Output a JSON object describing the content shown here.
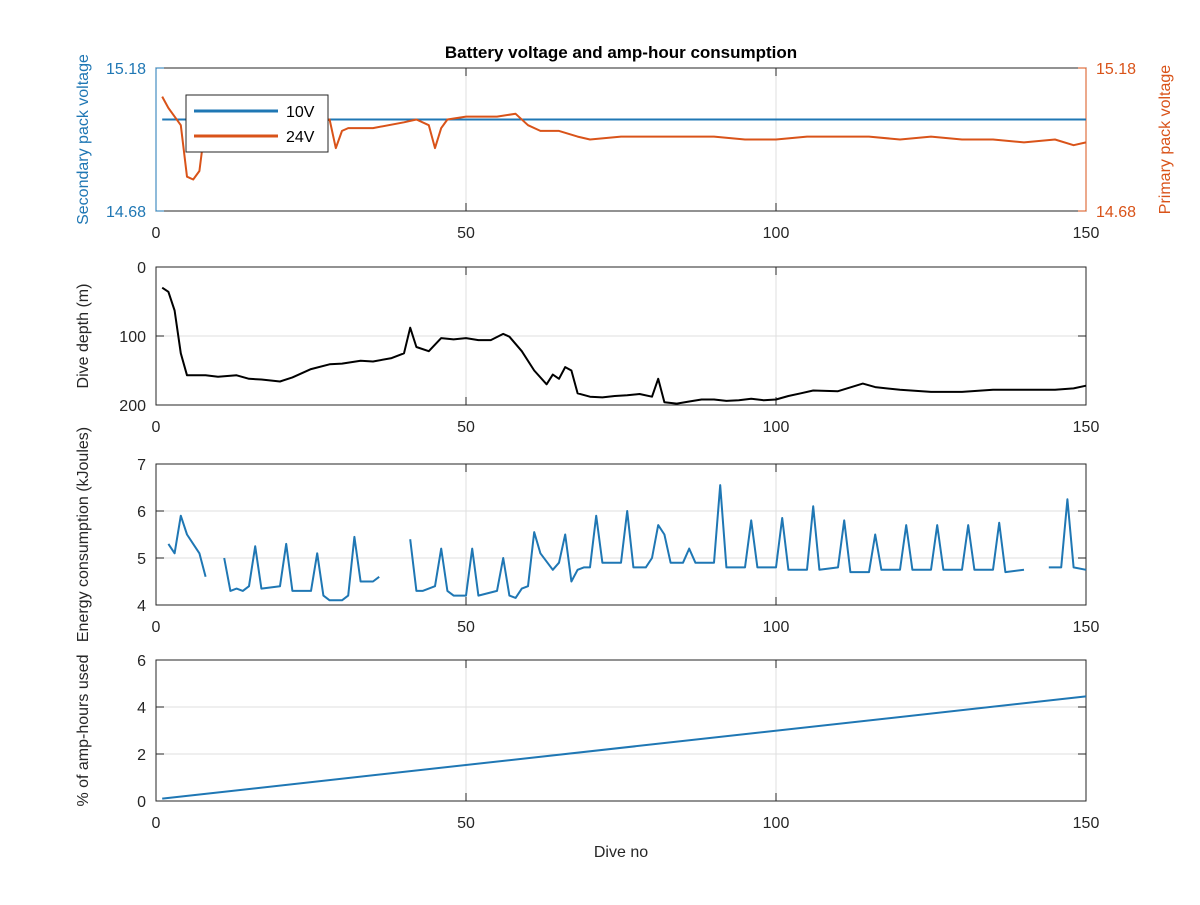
{
  "colors": {
    "blue": "#1f77b4",
    "orange": "#d95319",
    "black": "#000000",
    "grid": "#dfdfdf",
    "axis": "#262626"
  },
  "chart_data": [
    {
      "type": "line",
      "title": "Battery voltage and amp-hour consumption",
      "xlabel": "",
      "ylabel": "Secondary pack voltage",
      "y2label": "Primary pack voltage",
      "xlim": [
        0,
        150
      ],
      "ylim": [
        14.68,
        15.18
      ],
      "y2lim": [
        14.68,
        15.18
      ],
      "x_ticks": [
        0,
        50,
        100,
        150
      ],
      "y_tick_labels": [
        "14.68",
        "15.18"
      ],
      "y2_tick_labels": [
        "14.68",
        "15.18"
      ],
      "grid": true,
      "legend_position": "top-left",
      "series": [
        {
          "name": "10V",
          "axis": "left",
          "color": "#1f77b4",
          "x": [
            1,
            150
          ],
          "y": [
            15.0,
            15.0
          ]
        },
        {
          "name": "24V",
          "axis": "right",
          "color": "#d95319",
          "x": [
            1,
            2,
            3,
            4,
            5,
            6,
            7,
            8,
            10,
            15,
            20,
            25,
            28,
            29,
            30,
            31,
            35,
            40,
            42,
            44,
            45,
            46,
            47,
            50,
            55,
            58,
            60,
            62,
            65,
            68,
            70,
            75,
            80,
            85,
            90,
            95,
            100,
            105,
            110,
            115,
            120,
            125,
            130,
            135,
            140,
            145,
            148,
            150
          ],
          "y": [
            15.08,
            15.04,
            15.01,
            14.98,
            14.8,
            14.79,
            14.82,
            14.99,
            14.99,
            14.98,
            14.99,
            14.98,
            15.0,
            14.9,
            14.96,
            14.97,
            14.97,
            14.99,
            15.0,
            14.98,
            14.9,
            14.97,
            15.0,
            15.01,
            15.01,
            15.02,
            14.98,
            14.96,
            14.96,
            14.94,
            14.93,
            14.94,
            14.94,
            14.94,
            14.94,
            14.93,
            14.93,
            14.94,
            14.94,
            14.94,
            14.93,
            14.94,
            14.93,
            14.93,
            14.92,
            14.93,
            14.91,
            14.92
          ]
        }
      ]
    },
    {
      "type": "line",
      "xlabel": "",
      "ylabel": "Dive depth (m)",
      "xlim": [
        0,
        150
      ],
      "ylim": [
        0,
        200
      ],
      "y_reversed": true,
      "x_ticks": [
        0,
        50,
        100,
        150
      ],
      "y_ticks": [
        0,
        100,
        200
      ],
      "grid": true,
      "series": [
        {
          "color": "#000000",
          "x": [
            1,
            2,
            3,
            4,
            5,
            6,
            8,
            10,
            13,
            15,
            17,
            20,
            22,
            25,
            28,
            30,
            33,
            35,
            38,
            40,
            41,
            42,
            44,
            46,
            48,
            50,
            52,
            54,
            56,
            57,
            59,
            61,
            63,
            64,
            65,
            66,
            67,
            68,
            70,
            72,
            74,
            76,
            78,
            80,
            81,
            82,
            84,
            86,
            88,
            90,
            92,
            94,
            96,
            98,
            100,
            102,
            104,
            106,
            110,
            114,
            116,
            120,
            125,
            130,
            135,
            140,
            145,
            148,
            150
          ],
          "y": [
            30,
            36,
            63,
            125,
            157,
            157,
            157,
            159,
            157,
            162,
            163,
            166,
            160,
            148,
            141,
            140,
            136,
            137,
            132,
            125,
            88,
            116,
            122,
            103,
            105,
            103,
            106,
            106,
            97,
            101,
            122,
            150,
            170,
            156,
            162,
            145,
            150,
            183,
            188,
            189,
            187,
            186,
            184,
            188,
            162,
            196,
            198,
            195,
            192,
            192,
            194,
            193,
            191,
            193,
            192,
            187,
            183,
            179,
            180,
            169,
            174,
            178,
            181,
            181,
            178,
            178,
            178,
            176,
            172
          ]
        }
      ]
    },
    {
      "type": "line",
      "xlabel": "",
      "ylabel": "Energy consumption (kJoules)",
      "xlim": [
        0,
        150
      ],
      "ylim": [
        4,
        7
      ],
      "x_ticks": [
        0,
        50,
        100,
        150
      ],
      "y_ticks": [
        4,
        5,
        6,
        7
      ],
      "grid": true,
      "series": [
        {
          "color": "#1f77b4",
          "segments": [
            [
              [
                2,
                5.3
              ],
              [
                3,
                5.1
              ],
              [
                4,
                5.9
              ],
              [
                5,
                5.5
              ],
              [
                6,
                5.3
              ],
              [
                7,
                5.1
              ],
              [
                8,
                4.6
              ]
            ],
            [
              [
                11,
                5.0
              ],
              [
                12,
                4.3
              ],
              [
                13,
                4.35
              ],
              [
                14,
                4.3
              ],
              [
                15,
                4.4
              ],
              [
                16,
                5.25
              ],
              [
                17,
                4.35
              ],
              [
                20,
                4.4
              ],
              [
                21,
                5.3
              ],
              [
                22,
                4.3
              ],
              [
                25,
                4.3
              ],
              [
                26,
                5.1
              ],
              [
                27,
                4.2
              ],
              [
                28,
                4.1
              ],
              [
                30,
                4.1
              ],
              [
                31,
                4.2
              ],
              [
                32,
                5.45
              ],
              [
                33,
                4.5
              ],
              [
                35,
                4.5
              ],
              [
                36,
                4.6
              ]
            ],
            [
              [
                41,
                5.4
              ],
              [
                42,
                4.3
              ],
              [
                43,
                4.3
              ],
              [
                44,
                4.35
              ],
              [
                45,
                4.4
              ],
              [
                46,
                5.2
              ],
              [
                47,
                4.3
              ],
              [
                48,
                4.2
              ],
              [
                50,
                4.2
              ],
              [
                51,
                5.2
              ],
              [
                52,
                4.2
              ],
              [
                55,
                4.3
              ],
              [
                56,
                5.0
              ],
              [
                57,
                4.2
              ],
              [
                58,
                4.15
              ],
              [
                59,
                4.35
              ],
              [
                60,
                4.4
              ],
              [
                61,
                5.55
              ],
              [
                62,
                5.1
              ],
              [
                64,
                4.75
              ],
              [
                65,
                4.9
              ],
              [
                66,
                5.5
              ],
              [
                67,
                4.5
              ],
              [
                68,
                4.75
              ],
              [
                69,
                4.8
              ],
              [
                70,
                4.8
              ],
              [
                71,
                5.9
              ],
              [
                72,
                4.9
              ],
              [
                75,
                4.9
              ],
              [
                76,
                6.0
              ],
              [
                77,
                4.8
              ],
              [
                79,
                4.8
              ],
              [
                80,
                5.0
              ],
              [
                81,
                5.7
              ],
              [
                82,
                5.5
              ],
              [
                83,
                4.9
              ],
              [
                85,
                4.9
              ],
              [
                86,
                5.2
              ],
              [
                87,
                4.9
              ],
              [
                90,
                4.9
              ],
              [
                91,
                6.55
              ],
              [
                92,
                4.8
              ],
              [
                95,
                4.8
              ],
              [
                96,
                5.8
              ],
              [
                97,
                4.8
              ],
              [
                100,
                4.8
              ],
              [
                101,
                5.85
              ],
              [
                102,
                4.75
              ],
              [
                105,
                4.75
              ],
              [
                106,
                6.1
              ],
              [
                107,
                4.75
              ],
              [
                110,
                4.8
              ],
              [
                111,
                5.8
              ],
              [
                112,
                4.7
              ],
              [
                115,
                4.7
              ],
              [
                116,
                5.5
              ],
              [
                117,
                4.75
              ],
              [
                120,
                4.75
              ],
              [
                121,
                5.7
              ],
              [
                122,
                4.75
              ],
              [
                125,
                4.75
              ],
              [
                126,
                5.7
              ],
              [
                127,
                4.75
              ],
              [
                130,
                4.75
              ],
              [
                131,
                5.7
              ],
              [
                132,
                4.75
              ],
              [
                135,
                4.75
              ],
              [
                136,
                5.75
              ],
              [
                137,
                4.7
              ],
              [
                140,
                4.75
              ]
            ],
            [
              [
                144,
                4.8
              ],
              [
                146,
                4.8
              ],
              [
                147,
                6.25
              ],
              [
                148,
                4.8
              ],
              [
                150,
                4.75
              ]
            ]
          ]
        }
      ]
    },
    {
      "type": "line",
      "xlabel": "Dive no",
      "ylabel": "% of amp-hours used",
      "xlim": [
        0,
        150
      ],
      "ylim": [
        0,
        6
      ],
      "x_ticks": [
        0,
        50,
        100,
        150
      ],
      "y_ticks": [
        0,
        2,
        4,
        6
      ],
      "grid": true,
      "series": [
        {
          "color": "#1f77b4",
          "x": [
            1,
            150
          ],
          "y": [
            0.1,
            4.45
          ]
        }
      ]
    }
  ]
}
